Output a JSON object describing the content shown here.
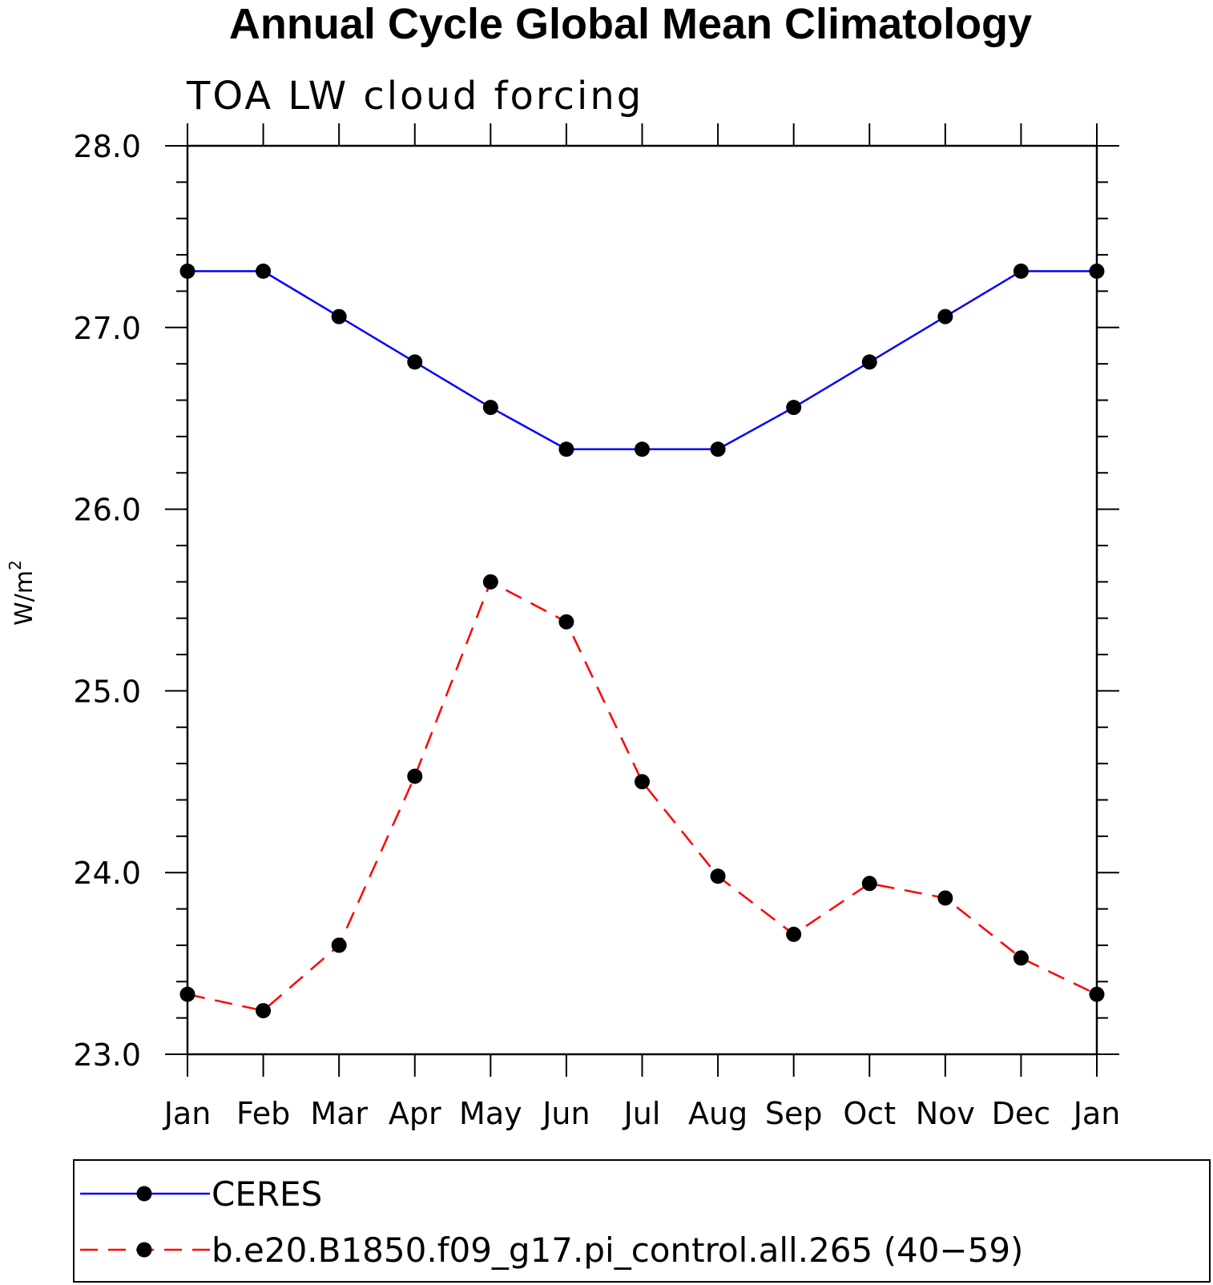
{
  "chart_data": {
    "type": "line",
    "title": "Annual Cycle Global Mean Climatology",
    "subtitle": "TOA LW cloud forcing",
    "ylabel": "W/m",
    "ylabel_superscript": "2",
    "xlabel": "",
    "categories": [
      "Jan",
      "Feb",
      "Mar",
      "Apr",
      "May",
      "Jun",
      "Jul",
      "Aug",
      "Sep",
      "Oct",
      "Nov",
      "Dec",
      "Jan"
    ],
    "ylim": [
      23.0,
      28.0
    ],
    "yticks": [
      "23.0",
      "24.0",
      "25.0",
      "26.0",
      "27.0",
      "28.0"
    ],
    "grid": false,
    "legend_position": "bottom",
    "series": [
      {
        "name": "CERES",
        "color": "#0000ff",
        "style": "solid",
        "values": [
          27.31,
          27.31,
          27.06,
          26.81,
          26.56,
          26.33,
          26.33,
          26.33,
          26.56,
          26.81,
          27.06,
          27.31,
          27.31
        ]
      },
      {
        "name": "b.e20.B1850.f09_g17.pi_control.all.265 (40−59)",
        "color": "#ff0000",
        "style": "dashed",
        "values": [
          23.33,
          23.24,
          23.6,
          24.53,
          25.6,
          25.38,
          24.5,
          23.98,
          23.66,
          23.94,
          23.86,
          23.53,
          23.33
        ]
      }
    ]
  }
}
